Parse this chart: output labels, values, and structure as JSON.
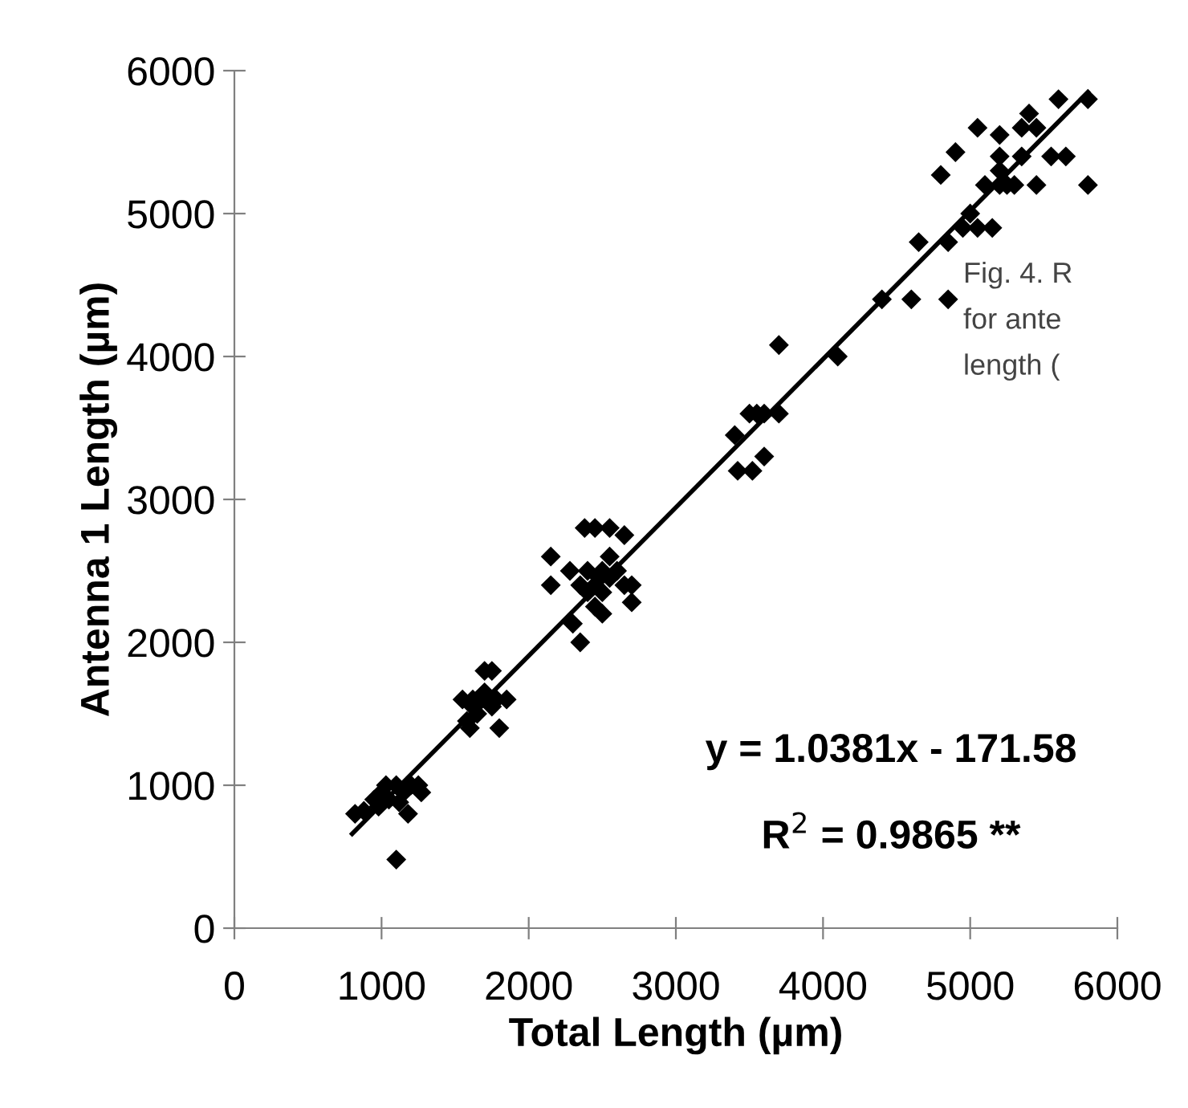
{
  "chart_data": {
    "type": "scatter",
    "xlabel": "Total Length (µm)",
    "ylabel": "Antenna 1 Length (µm)",
    "xlim": [
      0,
      6000
    ],
    "ylim": [
      0,
      6000
    ],
    "xticks": [
      0,
      1000,
      2000,
      3000,
      4000,
      5000,
      6000
    ],
    "yticks": [
      0,
      1000,
      2000,
      3000,
      4000,
      5000,
      6000
    ],
    "grid": false,
    "legend": false,
    "marker": "diamond",
    "series": [
      {
        "color": "#000000",
        "x": [
          820,
          880,
          950,
          980,
          1000,
          1030,
          1050,
          1100,
          1120,
          1150,
          1180,
          1200,
          1250,
          1270,
          1100,
          1550,
          1580,
          1600,
          1620,
          1650,
          1680,
          1700,
          1750,
          1750,
          1780,
          1800,
          1850,
          1620,
          1700,
          2150,
          2150,
          2280,
          2300,
          2350,
          2380,
          2450,
          2550,
          2650,
          2400,
          2450,
          2500,
          2500,
          2550,
          2600,
          2650,
          2700,
          2700,
          2450,
          2500,
          2350,
          2400,
          2550,
          2480,
          3400,
          3420,
          3520,
          3500,
          3550,
          3600,
          3600,
          3700,
          3700,
          4100,
          4400,
          4600,
          4650,
          4850,
          4850,
          4950,
          4800,
          4900,
          5050,
          5000,
          5050,
          5100,
          5150,
          5200,
          5200,
          5200,
          5250,
          5300,
          5350,
          5350,
          5400,
          5450,
          5450,
          5550,
          5600,
          5650,
          5800,
          5800,
          5200
        ],
        "values": [
          800,
          820,
          900,
          850,
          950,
          1000,
          900,
          1000,
          880,
          950,
          800,
          1000,
          1000,
          950,
          480,
          1600,
          1450,
          1400,
          1600,
          1500,
          1600,
          1800,
          1800,
          1550,
          1600,
          1400,
          1600,
          1550,
          1650,
          2600,
          2400,
          2500,
          2130,
          2000,
          2800,
          2800,
          2800,
          2750,
          2500,
          2400,
          2350,
          2500,
          2450,
          2500,
          2400,
          2400,
          2280,
          2250,
          2200,
          2400,
          2350,
          2600,
          2450,
          3450,
          3200,
          3200,
          3600,
          3600,
          3600,
          3300,
          3600,
          4080,
          4000,
          4400,
          4400,
          4800,
          4400,
          4800,
          4900,
          5270,
          5430,
          4900,
          5000,
          5600,
          5200,
          4900,
          5200,
          5400,
          5550,
          5200,
          5200,
          5600,
          5400,
          5700,
          5600,
          5200,
          5400,
          5800,
          5400,
          5800,
          5200,
          5300
        ]
      },
      {
        "type": "line",
        "color": "#000000",
        "marker": "none",
        "line_style": "solid",
        "x": [
          800,
          5800
        ],
        "values": [
          660,
          5850
        ]
      }
    ],
    "annotations": [
      "y = 1.0381x - 171.58",
      "R$^{2}$ = 0.9865 **",
      "Fig. 4. R\nfor ante\nlength ("
    ]
  }
}
